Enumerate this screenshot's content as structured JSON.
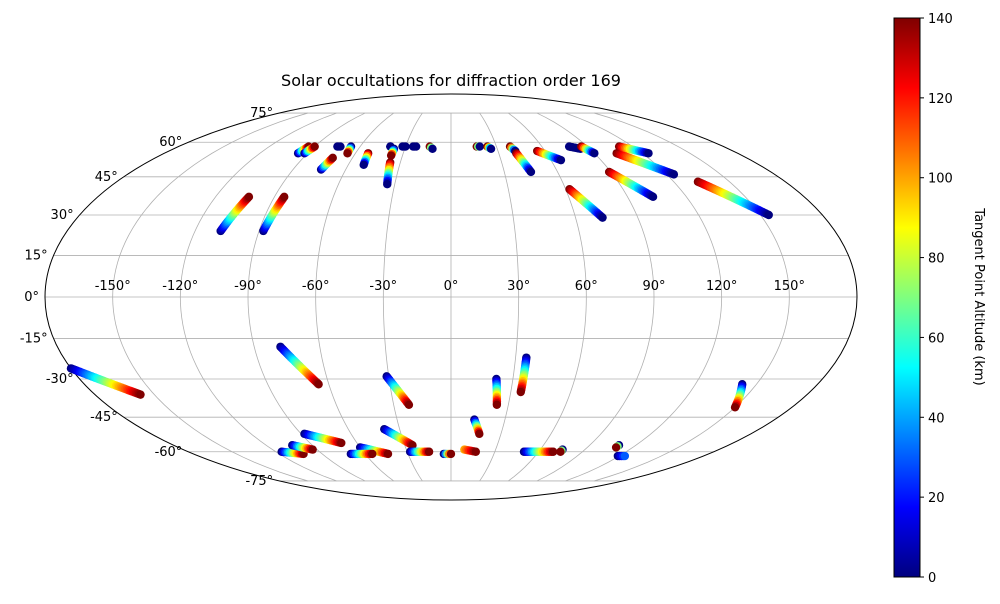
{
  "chart_data": {
    "type": "scatter",
    "projection": "mollweide",
    "title": "Solar occultations for diffraction order 169",
    "grid": true,
    "lon_range": [
      -180,
      180
    ],
    "lat_range": [
      -90,
      90
    ],
    "lon_ticks": [
      {
        "value": -150,
        "label": "-150°"
      },
      {
        "value": -120,
        "label": "-120°"
      },
      {
        "value": -90,
        "label": "-90°"
      },
      {
        "value": -60,
        "label": "-60°"
      },
      {
        "value": -30,
        "label": "-30°"
      },
      {
        "value": 0,
        "label": "0°"
      },
      {
        "value": 30,
        "label": "30°"
      },
      {
        "value": 60,
        "label": "60°"
      },
      {
        "value": 90,
        "label": "90°"
      },
      {
        "value": 120,
        "label": "120°"
      },
      {
        "value": 150,
        "label": "150°"
      }
    ],
    "lat_ticks": [
      {
        "value": 75,
        "label": "75°"
      },
      {
        "value": 60,
        "label": "60°"
      },
      {
        "value": 45,
        "label": "45°"
      },
      {
        "value": 30,
        "label": "30°"
      },
      {
        "value": 15,
        "label": "15°"
      },
      {
        "value": 0,
        "label": "0°"
      },
      {
        "value": -15,
        "label": "-15°"
      },
      {
        "value": -30,
        "label": "-30°"
      },
      {
        "value": -45,
        "label": "-45°"
      },
      {
        "value": -60,
        "label": "-60°"
      },
      {
        "value": -75,
        "label": "-75°"
      }
    ],
    "colorbar": {
      "label": "Tangent Point Altitude (km)",
      "colormap": "jet",
      "range": [
        0,
        140
      ],
      "ticks": [
        {
          "value": 0,
          "label": "0"
        },
        {
          "value": 20,
          "label": "20"
        },
        {
          "value": 40,
          "label": "40"
        },
        {
          "value": 60,
          "label": "60"
        },
        {
          "value": 80,
          "label": "80"
        },
        {
          "value": 100,
          "label": "100"
        },
        {
          "value": 120,
          "label": "120"
        },
        {
          "value": 140,
          "label": "140"
        }
      ]
    },
    "tracks": [
      {
        "lon": [
          -108,
          -103
        ],
        "lat": [
          24,
          37
        ],
        "alt": [
          0,
          140
        ]
      },
      {
        "lon": [
          -88,
          -85
        ],
        "lat": [
          24,
          37
        ],
        "alt": [
          0,
          140
        ]
      },
      {
        "lon": [
          -74,
          -72
        ],
        "lat": [
          48,
          53
        ],
        "alt": [
          0,
          140
        ]
      },
      {
        "lon": [
          -96,
          -94
        ],
        "lat": [
          55,
          58
        ],
        "alt": [
          0,
          140
        ]
      },
      {
        "lon": [
          -92,
          -90
        ],
        "lat": [
          55,
          58
        ],
        "alt": [
          0,
          140
        ]
      },
      {
        "lon": [
          -75,
          -73
        ],
        "lat": [
          58,
          58
        ],
        "alt": [
          0,
          0
        ]
      },
      {
        "lon": [
          -66,
          -65
        ],
        "lat": [
          58,
          55
        ],
        "alt": [
          0,
          140
        ]
      },
      {
        "lon": [
          -52,
          -51
        ],
        "lat": [
          55,
          50
        ],
        "alt": [
          140,
          0
        ]
      },
      {
        "lon": [
          -40,
          -40
        ],
        "lat": [
          58,
          58
        ],
        "alt": [
          0,
          0
        ]
      },
      {
        "lon": [
          -37,
          -37
        ],
        "lat": [
          57,
          54
        ],
        "alt": [
          0,
          140
        ]
      },
      {
        "lon": [
          -36,
          -34
        ],
        "lat": [
          51,
          42
        ],
        "alt": [
          140,
          0
        ]
      },
      {
        "lon": [
          -32,
          -30
        ],
        "lat": [
          58,
          58
        ],
        "alt": [
          0,
          0
        ]
      },
      {
        "lon": [
          -25,
          -23
        ],
        "lat": [
          58,
          58
        ],
        "alt": [
          0,
          0
        ]
      },
      {
        "lon": [
          -14,
          -12
        ],
        "lat": [
          58,
          57
        ],
        "alt": [
          140,
          0
        ]
      },
      {
        "lon": [
          17,
          19
        ],
        "lat": [
          58,
          58
        ],
        "alt": [
          140,
          0
        ]
      },
      {
        "lon": [
          24,
          26
        ],
        "lat": [
          58,
          57
        ],
        "alt": [
          140,
          0
        ]
      },
      {
        "lon": [
          39,
          41
        ],
        "lat": [
          58,
          56
        ],
        "alt": [
          140,
          0
        ]
      },
      {
        "lon": [
          41,
          45
        ],
        "lat": [
          55,
          47
        ],
        "alt": [
          140,
          0
        ]
      },
      {
        "lon": [
          55,
          66
        ],
        "lat": [
          56,
          52
        ],
        "alt": [
          140,
          0
        ]
      },
      {
        "lon": [
          62,
          73
        ],
        "lat": [
          40,
          29
        ],
        "alt": [
          140,
          0
        ]
      },
      {
        "lon": [
          78,
          84
        ],
        "lat": [
          58,
          57
        ],
        "alt": [
          0,
          0
        ]
      },
      {
        "lon": [
          86,
          90
        ],
        "lat": [
          58,
          55
        ],
        "alt": [
          140,
          0
        ]
      },
      {
        "lon": [
          89,
          103
        ],
        "lat": [
          47,
          37
        ],
        "alt": [
          140,
          0
        ]
      },
      {
        "lon": [
          104,
          124
        ],
        "lat": [
          55,
          46
        ],
        "alt": [
          140,
          0
        ]
      },
      {
        "lon": [
          111,
          124
        ],
        "lat": [
          58,
          55
        ],
        "alt": [
          140,
          0
        ]
      },
      {
        "lon": [
          133,
          154
        ],
        "lat": [
          43,
          30
        ],
        "alt": [
          140,
          0
        ]
      },
      {
        "lon": [
          -180,
          -157
        ],
        "lat": [
          -26,
          -36
        ],
        "alt": [
          0,
          140
        ]
      },
      {
        "lon": [
          -78,
          -65
        ],
        "lat": [
          -18,
          -32
        ],
        "alt": [
          0,
          140
        ]
      },
      {
        "lon": [
          -31,
          -22
        ],
        "lat": [
          -29,
          -40
        ],
        "alt": [
          0,
          140
        ]
      },
      {
        "lon": [
          22,
          24
        ],
        "lat": [
          -30,
          -40
        ],
        "alt": [
          0,
          140
        ]
      },
      {
        "lon": [
          35,
          35
        ],
        "lat": [
          -22,
          -35
        ],
        "alt": [
          0,
          140
        ]
      },
      {
        "lon": [
          13,
          17
        ],
        "lat": [
          -46,
          -52
        ],
        "alt": [
          0,
          140
        ]
      },
      {
        "lon": [
          -39,
          -25
        ],
        "lat": [
          -50,
          -57
        ],
        "alt": [
          0,
          140
        ]
      },
      {
        "lon": [
          -88,
          -70
        ],
        "lat": [
          -52,
          -56
        ],
        "alt": [
          0,
          140
        ]
      },
      {
        "lon": [
          -116,
          -103
        ],
        "lat": [
          -60,
          -61
        ],
        "alt": [
          0,
          140
        ]
      },
      {
        "lon": [
          -103,
          -93
        ],
        "lat": [
          -57,
          -59
        ],
        "alt": [
          0,
          140
        ]
      },
      {
        "lon": [
          -60,
          -44
        ],
        "lat": [
          -58,
          -61
        ],
        "alt": [
          0,
          140
        ]
      },
      {
        "lon": [
          -70,
          -55
        ],
        "lat": [
          -61,
          -61
        ],
        "alt": [
          0,
          140
        ]
      },
      {
        "lon": [
          -28,
          -15
        ],
        "lat": [
          -60,
          -60
        ],
        "alt": [
          0,
          140
        ]
      },
      {
        "lon": [
          -5,
          0
        ],
        "lat": [
          -61,
          -61
        ],
        "alt": [
          0,
          140
        ]
      },
      {
        "lon": [
          9,
          17
        ],
        "lat": [
          -59,
          -60
        ],
        "alt": [
          100,
          140
        ]
      },
      {
        "lon": [
          50,
          70
        ],
        "lat": [
          -60,
          -60
        ],
        "alt": [
          0,
          140
        ]
      },
      {
        "lon": [
          75,
          75
        ],
        "lat": [
          -59,
          -60
        ],
        "alt": [
          0,
          140
        ]
      },
      {
        "lon": [
          109,
          109
        ],
        "lat": [
          -57,
          -58
        ],
        "alt": [
          0,
          140
        ]
      },
      {
        "lon": [
          119,
          124
        ],
        "lat": [
          -62,
          -62
        ],
        "alt": [
          0,
          30
        ]
      },
      {
        "lon": [
          143,
          150
        ],
        "lat": [
          -32,
          -41
        ],
        "alt": [
          0,
          140
        ]
      }
    ]
  }
}
